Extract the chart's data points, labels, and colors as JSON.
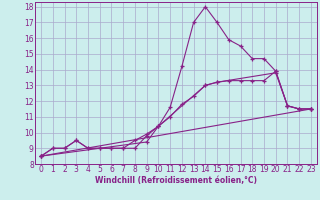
{
  "xlabel": "Windchill (Refroidissement éolien,°C)",
  "background_color": "#cceeed",
  "grid_color": "#aaaacc",
  "line_color": "#882288",
  "xlim": [
    -0.5,
    23.5
  ],
  "ylim": [
    8,
    18.3
  ],
  "xticks": [
    0,
    1,
    2,
    3,
    4,
    5,
    6,
    7,
    8,
    9,
    10,
    11,
    12,
    13,
    14,
    15,
    16,
    17,
    18,
    19,
    20,
    21,
    22,
    23
  ],
  "yticks": [
    8,
    9,
    10,
    11,
    12,
    13,
    14,
    15,
    16,
    17,
    18
  ],
  "line1_x": [
    0,
    1,
    2,
    3,
    4,
    5,
    6,
    7,
    8,
    9,
    10,
    11,
    12,
    13,
    14,
    15,
    16,
    17,
    18,
    19,
    20,
    21,
    22,
    23
  ],
  "line1_y": [
    8.5,
    9.0,
    9.0,
    9.5,
    9.0,
    9.0,
    9.0,
    9.0,
    9.0,
    9.8,
    10.4,
    11.6,
    14.2,
    17.0,
    18.0,
    17.0,
    15.9,
    15.5,
    14.7,
    14.7,
    13.9,
    11.7,
    11.5,
    11.5
  ],
  "line2_x": [
    0,
    1,
    2,
    3,
    4,
    5,
    6,
    7,
    8,
    9,
    10,
    11,
    12,
    13,
    14,
    15,
    16,
    17,
    18,
    19,
    20,
    21,
    22,
    23
  ],
  "line2_y": [
    8.5,
    9.0,
    9.0,
    9.5,
    9.0,
    9.0,
    9.0,
    9.0,
    9.5,
    9.9,
    10.4,
    11.0,
    11.8,
    12.3,
    13.0,
    13.2,
    13.3,
    13.3,
    13.3,
    13.3,
    13.9,
    11.7,
    11.5,
    11.5
  ],
  "line3_x": [
    0,
    9,
    10,
    14,
    15,
    20,
    21,
    22,
    23
  ],
  "line3_y": [
    8.5,
    9.4,
    10.4,
    13.0,
    13.2,
    13.8,
    11.7,
    11.5,
    11.5
  ],
  "line4_x": [
    0,
    23
  ],
  "line4_y": [
    8.5,
    11.5
  ],
  "label_fontsize": 5.5,
  "tick_fontsize": 5.5
}
